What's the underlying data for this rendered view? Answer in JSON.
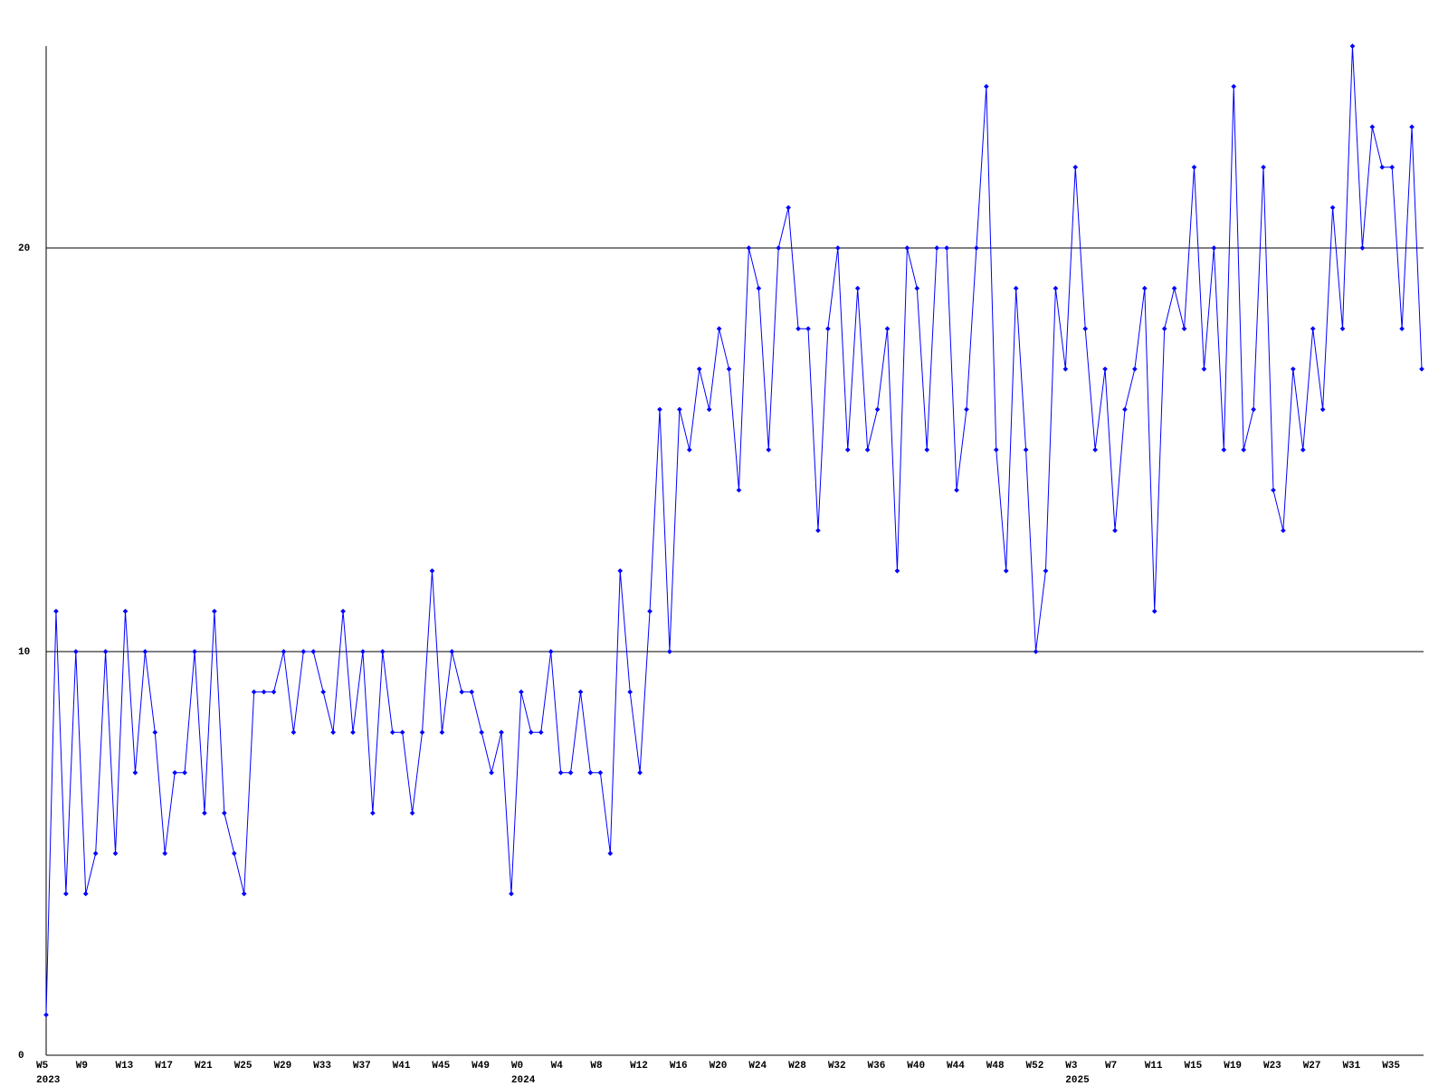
{
  "chart_data": {
    "type": "line",
    "categories": [
      "W5",
      null,
      null,
      null,
      "W9",
      null,
      null,
      null,
      "W13",
      null,
      null,
      null,
      "W17",
      null,
      null,
      null,
      "W21",
      null,
      null,
      null,
      "W25",
      null,
      null,
      null,
      "W29",
      null,
      null,
      null,
      "W33",
      null,
      null,
      null,
      "W37",
      null,
      null,
      null,
      "W41",
      null,
      null,
      null,
      "W45",
      null,
      null,
      null,
      "W49",
      null,
      null,
      null,
      "W0",
      null,
      null,
      null,
      "W4",
      null,
      null,
      null,
      "W8",
      null,
      null,
      null,
      "W12",
      null,
      null,
      null,
      "W16",
      null,
      null,
      null,
      "W20",
      null,
      null,
      null,
      "W24",
      null,
      null,
      null,
      "W28",
      null,
      null,
      null,
      "W32",
      null,
      null,
      null,
      "W36",
      null,
      null,
      null,
      "W40",
      null,
      null,
      null,
      "W44",
      null,
      null,
      null,
      "W48",
      null,
      null,
      null,
      "W52",
      null,
      null,
      null,
      "W3",
      null,
      null,
      null,
      "W7",
      null,
      null,
      null,
      "W11",
      null,
      null,
      null,
      "W15",
      null,
      null,
      null,
      "W19",
      null,
      null,
      null,
      "W23",
      null,
      null,
      null,
      "W27",
      null,
      null,
      null,
      "W31",
      null,
      null,
      null,
      "W35",
      null,
      null,
      null
    ],
    "years": [
      "2023",
      null,
      null,
      null,
      null,
      null,
      null,
      null,
      null,
      null,
      null,
      null,
      null,
      null,
      null,
      null,
      null,
      null,
      null,
      null,
      null,
      null,
      null,
      null,
      null,
      null,
      null,
      null,
      null,
      null,
      null,
      null,
      null,
      null,
      null,
      null,
      null,
      null,
      null,
      null,
      null,
      null,
      null,
      null,
      null,
      null,
      null,
      null,
      "2024",
      null,
      null,
      null,
      null,
      null,
      null,
      null,
      null,
      null,
      null,
      null,
      null,
      null,
      null,
      null,
      null,
      null,
      null,
      null,
      null,
      null,
      null,
      null,
      null,
      null,
      null,
      null,
      null,
      null,
      null,
      null,
      null,
      null,
      null,
      null,
      null,
      null,
      null,
      null,
      null,
      null,
      null,
      null,
      null,
      null,
      null,
      null,
      null,
      null,
      null,
      null,
      null,
      null,
      null,
      null,
      "2025",
      null,
      null,
      null,
      null,
      null,
      null,
      null,
      null,
      null,
      null,
      null,
      null,
      null,
      null,
      null,
      null,
      null,
      null,
      null,
      null,
      null,
      null,
      null,
      null,
      null,
      null,
      null,
      null,
      null,
      null,
      null,
      null,
      null,
      null,
      null
    ],
    "series": [
      {
        "color": "#0000ff",
        "values": [
          1,
          11,
          4,
          10,
          4,
          5,
          10,
          5,
          11,
          7,
          10,
          8,
          5,
          7,
          7,
          10,
          6,
          11,
          6,
          5,
          4,
          9,
          9,
          9,
          10,
          8,
          10,
          10,
          9,
          8,
          11,
          8,
          10,
          6,
          10,
          8,
          8,
          6,
          8,
          12,
          8,
          10,
          9,
          9,
          8,
          7,
          8,
          4,
          9,
          8,
          8,
          10,
          7,
          7,
          9,
          7,
          7,
          5,
          12,
          9,
          7,
          11,
          16,
          10,
          16,
          15,
          17,
          16,
          18,
          17,
          14,
          20,
          19,
          15,
          20,
          21,
          18,
          18,
          13,
          18,
          20,
          15,
          19,
          15,
          16,
          18,
          12,
          20,
          19,
          15,
          20,
          20,
          14,
          16,
          20,
          24,
          15,
          12,
          19,
          15,
          10,
          12,
          19,
          17,
          22,
          18,
          15,
          17,
          13,
          16,
          17,
          19,
          11,
          18,
          19,
          18,
          22,
          17,
          20,
          15,
          24,
          15,
          16,
          22,
          14,
          13,
          17,
          15,
          18,
          16,
          21,
          18,
          25,
          20,
          23,
          22,
          22,
          18,
          23,
          17
        ]
      }
    ],
    "ylim": [
      0,
      25
    ],
    "yticks": [
      0,
      10,
      20
    ],
    "grid": true
  }
}
